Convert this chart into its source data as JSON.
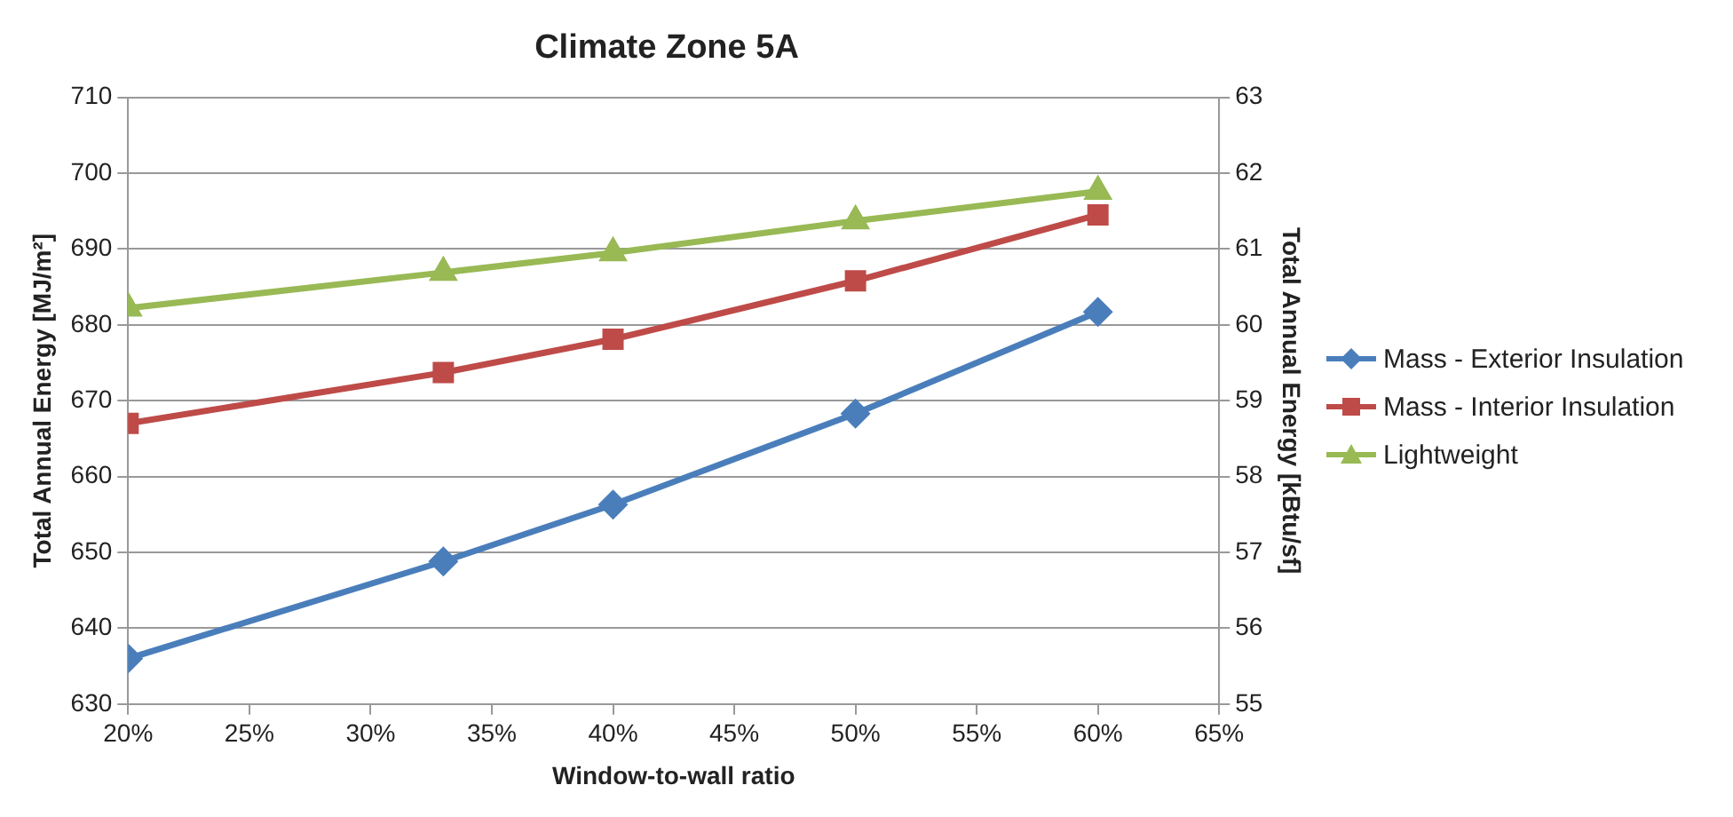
{
  "chart_data": {
    "type": "line",
    "title": "Climate Zone 5A",
    "xlabel": "Window-to-wall ratio",
    "ylabel": "Total Annual Energy [MJ/m²]",
    "y2label": "Total Annual Energy [kBtu/sf]",
    "x": [
      20,
      33,
      40,
      50,
      60
    ],
    "series": [
      {
        "name": "Mass - Exterior Insulation",
        "color": "#4a7ebb",
        "marker": "diamond",
        "values": [
          636,
          648.8,
          656.3,
          668.3,
          681.7
        ]
      },
      {
        "name": "Mass - Interior Insulation",
        "color": "#be4b48",
        "marker": "square",
        "values": [
          667,
          673.7,
          678.1,
          685.8,
          694.5
        ]
      },
      {
        "name": "Lightweight",
        "color": "#98b954",
        "marker": "triangle",
        "values": [
          682.2,
          686.9,
          689.5,
          693.7,
          697.6
        ]
      }
    ],
    "xlim": [
      20,
      65
    ],
    "xticks": [
      {
        "value": 20,
        "label": "20%"
      },
      {
        "value": 25,
        "label": "25%"
      },
      {
        "value": 30,
        "label": "30%"
      },
      {
        "value": 35,
        "label": "35%"
      },
      {
        "value": 40,
        "label": "40%"
      },
      {
        "value": 45,
        "label": "45%"
      },
      {
        "value": 50,
        "label": "50%"
      },
      {
        "value": 55,
        "label": "55%"
      },
      {
        "value": 60,
        "label": "60%"
      },
      {
        "value": 65,
        "label": "65%"
      }
    ],
    "ylim": [
      630,
      710
    ],
    "yticks": [
      630,
      640,
      650,
      660,
      670,
      680,
      690,
      700,
      710
    ],
    "y2lim": [
      55,
      63
    ],
    "y2ticks": [
      55,
      56,
      57,
      58,
      59,
      60,
      61,
      62,
      63
    ],
    "grid": "y",
    "legend": "right",
    "line_style": "solid"
  }
}
